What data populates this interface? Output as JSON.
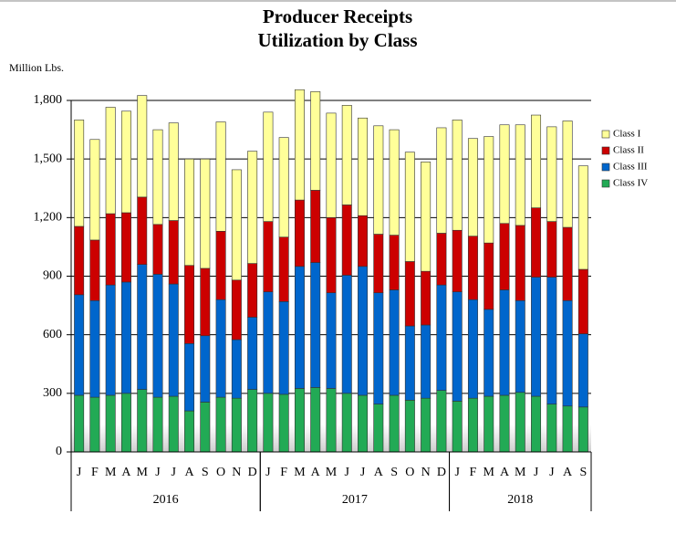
{
  "chart_data": {
    "type": "stacked-bar",
    "title": "Producer Receipts",
    "subtitle": "Utilization by Class",
    "y_label": "Million Lbs.",
    "categories": [
      "J",
      "F",
      "M",
      "A",
      "M",
      "J",
      "J",
      "A",
      "S",
      "O",
      "N",
      "D",
      "J",
      "F",
      "M",
      "A",
      "M",
      "J",
      "J",
      "A",
      "S",
      "O",
      "N",
      "D",
      "J",
      "F",
      "M",
      "A",
      "M",
      "J",
      "J",
      "A",
      "S"
    ],
    "years": [
      "2016",
      "2017",
      "2018"
    ],
    "series": [
      {
        "name": "Class I",
        "color": "#ffff99",
        "values": [
          545,
          515,
          545,
          520,
          520,
          485,
          500,
          545,
          560,
          560,
          565,
          575,
          560,
          510,
          565,
          505,
          535,
          510,
          500,
          555,
          540,
          560,
          560,
          540,
          565,
          500,
          545,
          505,
          515,
          475,
          485,
          545,
          530
        ]
      },
      {
        "name": "Class II",
        "color": "#cc0000",
        "values": [
          350,
          310,
          365,
          355,
          345,
          255,
          325,
          400,
          345,
          350,
          305,
          275,
          360,
          330,
          340,
          370,
          385,
          360,
          260,
          300,
          280,
          330,
          275,
          265,
          315,
          325,
          340,
          340,
          385,
          355,
          285,
          375,
          330
        ]
      },
      {
        "name": "Class III",
        "color": "#0066cc",
        "values": [
          515,
          495,
          565,
          570,
          640,
          630,
          575,
          345,
          340,
          500,
          300,
          370,
          520,
          475,
          625,
          640,
          490,
          605,
          660,
          570,
          540,
          380,
          375,
          540,
          560,
          505,
          445,
          540,
          470,
          610,
          650,
          540,
          375
        ]
      },
      {
        "name": "Class IV",
        "color": "#22aa55",
        "values": [
          290,
          280,
          290,
          300,
          320,
          280,
          285,
          210,
          255,
          280,
          275,
          320,
          300,
          295,
          325,
          330,
          325,
          300,
          290,
          245,
          290,
          265,
          275,
          315,
          260,
          275,
          285,
          290,
          305,
          285,
          245,
          235,
          230
        ]
      }
    ],
    "ylim": [
      0,
      1800
    ],
    "yticks": [
      0,
      300,
      600,
      900,
      {
        "value": 1200,
        "label": "1,200"
      },
      {
        "value": 1500,
        "label": "1,500"
      },
      {
        "value": 1800,
        "label": "1,800"
      }
    ],
    "grid": true,
    "legend": "right"
  }
}
